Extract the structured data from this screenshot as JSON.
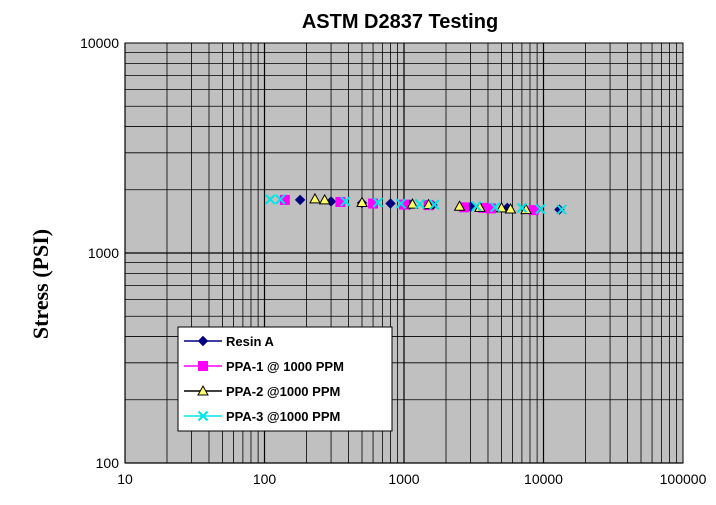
{
  "chart_data": {
    "type": "scatter",
    "title": "ASTM D2837 Testing",
    "xlabel": "",
    "ylabel": "Stress (PSI)",
    "xscale": "log",
    "yscale": "log",
    "xlim": [
      10,
      100000
    ],
    "ylim": [
      100,
      10000
    ],
    "x_tick_labels": [
      "10",
      "100",
      "1000",
      "10000",
      "100000"
    ],
    "y_tick_labels": [
      "100",
      "1000",
      "10000"
    ],
    "grid": true,
    "plot_background": "#c0c0c0",
    "legend_position": "bottom-left",
    "series": [
      {
        "name": "Resin A",
        "color": "#000080",
        "marker": "diamond",
        "x": [
          180,
          300,
          500,
          800,
          1100,
          1600,
          3000,
          5500,
          9000,
          13000
        ],
        "y": [
          1790,
          1760,
          1730,
          1720,
          1700,
          1690,
          1660,
          1640,
          1620,
          1610
        ]
      },
      {
        "name": "PPA-1 @ 1000 PPM",
        "color": "#ff00ff",
        "marker": "square",
        "x": [
          140,
          350,
          600,
          1000,
          1500,
          2700,
          3700,
          4200,
          8500
        ],
        "y": [
          1790,
          1750,
          1720,
          1700,
          1690,
          1650,
          1640,
          1630,
          1600
        ]
      },
      {
        "name": "PPA-2 @1000 PPM",
        "color": "#000000",
        "marker": "triangle",
        "x": [
          230,
          270,
          500,
          1150,
          1500,
          2500,
          3500,
          5000,
          5800,
          7500
        ],
        "y": [
          1810,
          1790,
          1740,
          1710,
          1700,
          1670,
          1650,
          1640,
          1620,
          1610
        ]
      },
      {
        "name": "PPA-3 @1000 PPM",
        "color": "#00e5e5",
        "marker": "x",
        "x": [
          110,
          130,
          380,
          650,
          950,
          1300,
          1650,
          3300,
          4500,
          7000,
          9500,
          13500
        ],
        "y": [
          1800,
          1800,
          1760,
          1740,
          1720,
          1710,
          1700,
          1670,
          1650,
          1640,
          1620,
          1610
        ]
      }
    ]
  }
}
